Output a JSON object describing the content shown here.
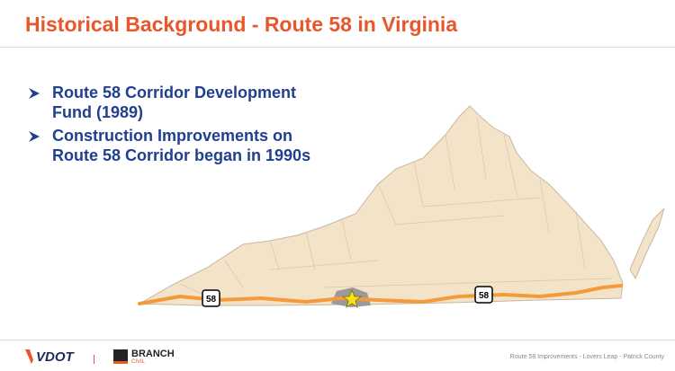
{
  "header": {
    "title": "Historical Background - Route 58 in Virginia"
  },
  "bullets": [
    "Route 58 Corridor Development Fund (1989)",
    "Construction Improvements on Route 58 Corridor began in 1990s"
  ],
  "map": {
    "shields": [
      "58",
      "58"
    ]
  },
  "footer": {
    "logo": "VDOT",
    "partner": "BRANCH",
    "partner_sub": "CIVIL",
    "text": "Route 58 Improvements - Lovers Leap - Patrick County"
  }
}
